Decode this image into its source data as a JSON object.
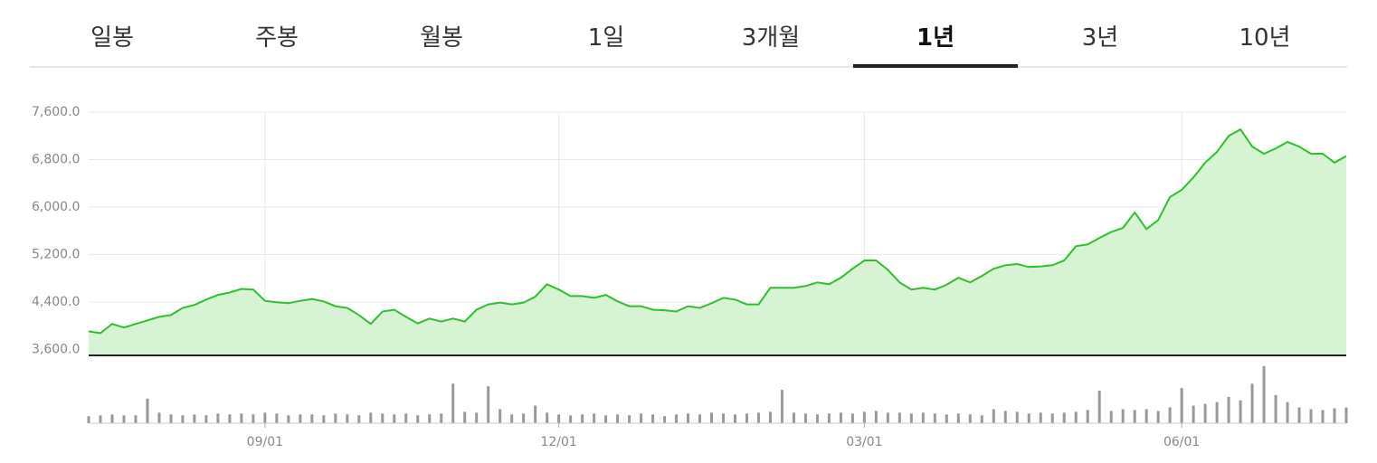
{
  "tabs": [
    "일봉",
    "주봉",
    "월봉",
    "1일",
    "3개월",
    "1년",
    "3년",
    "10년"
  ],
  "active_tab": 5,
  "chart_data": {
    "type": "line",
    "categories": [
      null,
      null,
      null,
      null,
      null,
      null,
      null,
      null,
      null,
      null,
      null,
      null,
      null,
      null,
      null,
      "09/01",
      null,
      null,
      null,
      null,
      null,
      null,
      null,
      null,
      null,
      null,
      null,
      null,
      null,
      null,
      null,
      null,
      null,
      null,
      null,
      null,
      null,
      null,
      null,
      null,
      "12/01",
      null,
      null,
      null,
      null,
      null,
      null,
      null,
      null,
      null,
      null,
      null,
      null,
      null,
      null,
      null,
      null,
      null,
      null,
      null,
      null,
      null,
      null,
      null,
      null,
      null,
      "03/01",
      null,
      null,
      null,
      null,
      null,
      null,
      null,
      null,
      null,
      null,
      null,
      null,
      null,
      null,
      null,
      null,
      null,
      null,
      null,
      null,
      null,
      null,
      null,
      null,
      null,
      null,
      "06/01",
      null,
      null,
      null,
      null,
      null,
      null,
      null,
      null,
      null,
      null,
      null,
      null,
      null,
      null
    ],
    "series": [
      {
        "color": "#2fbf2f",
        "area_color": "#d6f3d3",
        "values": [
          3905,
          3875,
          4030,
          3970,
          4030,
          4090,
          4150,
          4180,
          4300,
          4350,
          4440,
          4520,
          4560,
          4620,
          4610,
          4420,
          4395,
          4380,
          4420,
          4450,
          4410,
          4330,
          4300,
          4180,
          4030,
          4240,
          4270,
          4150,
          4040,
          4120,
          4070,
          4120,
          4070,
          4270,
          4360,
          4390,
          4360,
          4390,
          4490,
          4700,
          4610,
          4500,
          4500,
          4470,
          4520,
          4410,
          4330,
          4330,
          4270,
          4260,
          4240,
          4330,
          4300,
          4380,
          4470,
          4440,
          4360,
          4360,
          4640,
          4640,
          4640,
          4670,
          4730,
          4700,
          4810,
          4960,
          5100,
          5100,
          4940,
          4730,
          4610,
          4640,
          4610,
          4690,
          4810,
          4730,
          4840,
          4960,
          5020,
          5040,
          4990,
          5000,
          5020,
          5100,
          5340,
          5370,
          5480,
          5580,
          5650,
          5910,
          5630,
          5780,
          6170,
          6290,
          6500,
          6750,
          6930,
          7200,
          7310,
          7020,
          6900,
          6990,
          7100,
          7020,
          6900,
          6900,
          6750,
          6860
        ]
      },
      {
        "color": "#999999",
        "axis": "volume",
        "values": [
          8,
          9,
          10,
          9,
          9,
          28,
          12,
          10,
          9,
          10,
          9,
          11,
          10,
          11,
          10,
          12,
          11,
          9,
          10,
          10,
          9,
          11,
          10,
          9,
          12,
          11,
          10,
          11,
          9,
          10,
          11,
          45,
          13,
          12,
          42,
          16,
          10,
          11,
          20,
          12,
          10,
          9,
          10,
          11,
          9,
          10,
          9,
          11,
          10,
          8,
          10,
          11,
          10,
          12,
          11,
          10,
          11,
          12,
          13,
          38,
          12,
          11,
          10,
          11,
          12,
          11,
          13,
          14,
          12,
          12,
          11,
          12,
          11,
          10,
          11,
          10,
          9,
          16,
          14,
          13,
          11,
          12,
          11,
          12,
          13,
          15,
          37,
          14,
          16,
          15,
          16,
          14,
          18,
          40,
          20,
          22,
          24,
          30,
          26,
          45,
          65,
          32,
          24,
          18,
          16,
          15,
          17,
          18
        ]
      }
    ],
    "ylim": [
      3500,
      7700
    ],
    "yticks": [
      {
        "value": 3600,
        "label": "3,600.0"
      },
      {
        "value": 4400,
        "label": "4,400.0"
      },
      {
        "value": 5200,
        "label": "5,200.0"
      },
      {
        "value": 6000,
        "label": "6,000.0"
      },
      {
        "value": 6800,
        "label": "6,800.0"
      },
      {
        "value": 7600,
        "label": "7,600.0"
      }
    ],
    "volume_ylim": [
      0,
      70
    ],
    "grid": true
  }
}
